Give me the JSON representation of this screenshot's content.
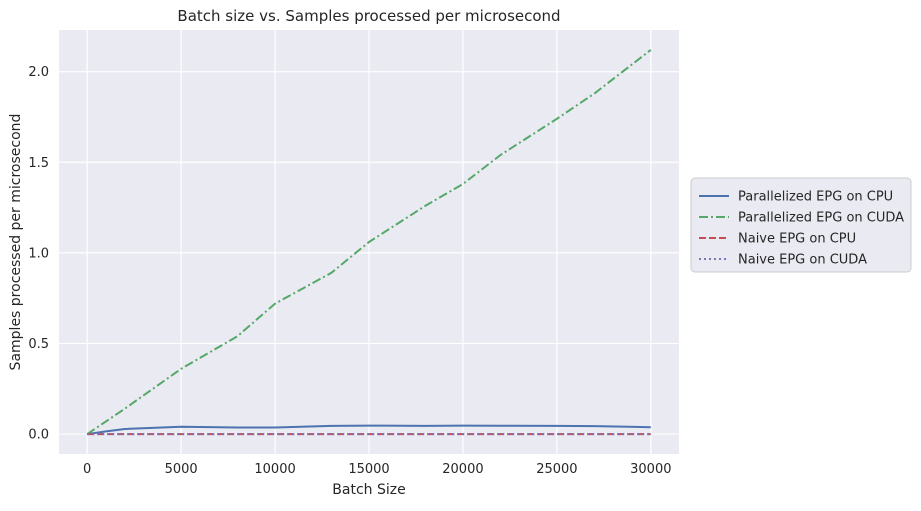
{
  "chart_data": {
    "type": "line",
    "title": "Batch size vs. Samples processed per microsecond",
    "xlabel": "Batch Size",
    "ylabel": "Samples processed per microsecond",
    "xlim": [
      -1500,
      31500
    ],
    "ylim": [
      -0.11,
      2.23
    ],
    "xticks": [
      0,
      5000,
      10000,
      15000,
      20000,
      25000,
      30000
    ],
    "yticks": [
      0.0,
      0.5,
      1.0,
      1.5,
      2.0
    ],
    "xtick_labels": [
      "0",
      "5000",
      "10000",
      "15000",
      "20000",
      "25000",
      "30000"
    ],
    "ytick_labels": [
      "0.0",
      "0.5",
      "1.0",
      "1.5",
      "2.0"
    ],
    "grid": true,
    "legend_position": "right-outside",
    "series": [
      {
        "name": "Parallelized EPG on CPU",
        "color": "#4c72b0",
        "linestyle": "solid",
        "x": [
          0,
          1000,
          2000,
          5000,
          8000,
          10000,
          13000,
          15000,
          18000,
          20000,
          22000,
          25000,
          27000,
          30000
        ],
        "y": [
          0.0,
          0.015,
          0.028,
          0.04,
          0.036,
          0.036,
          0.045,
          0.047,
          0.045,
          0.047,
          0.046,
          0.045,
          0.044,
          0.038
        ]
      },
      {
        "name": "Parallelized EPG on CUDA",
        "color": "#55a868",
        "linestyle": "dashdot",
        "x": [
          0,
          2000,
          5000,
          8000,
          10000,
          13000,
          15000,
          18000,
          20000,
          22000,
          25000,
          27000,
          30000
        ],
        "y": [
          0.0,
          0.14,
          0.36,
          0.54,
          0.72,
          0.89,
          1.06,
          1.26,
          1.38,
          1.54,
          1.74,
          1.88,
          2.12
        ]
      },
      {
        "name": "Naive EPG on CPU",
        "color": "#c44e52",
        "linestyle": "dashed",
        "x": [
          0,
          5000,
          10000,
          15000,
          20000,
          25000,
          30000
        ],
        "y": [
          0.0,
          0.0,
          0.0,
          0.0,
          0.0,
          0.0,
          0.0
        ]
      },
      {
        "name": "Naive EPG on CUDA",
        "color": "#8172b2",
        "linestyle": "dotted",
        "x": [
          0,
          5000,
          10000,
          15000,
          20000,
          25000,
          30000
        ],
        "y": [
          0.0,
          0.0,
          0.0,
          0.0,
          0.0,
          0.0,
          0.0
        ]
      }
    ]
  }
}
